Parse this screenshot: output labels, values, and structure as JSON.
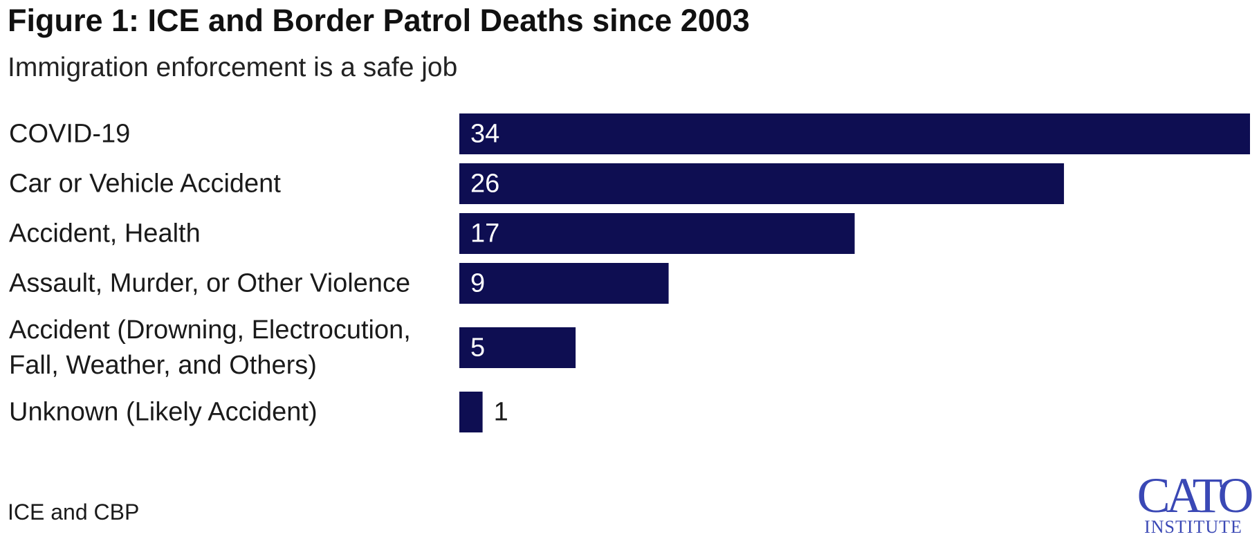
{
  "chart_data": {
    "type": "bar",
    "orientation": "horizontal",
    "title": "Figure 1: ICE and Border Patrol Deaths since 2003",
    "subtitle": "Immigration enforcement is a safe job",
    "categories": [
      [
        "COVID-19"
      ],
      [
        "Car or Vehicle Accident"
      ],
      [
        "Accident, Health"
      ],
      [
        "Assault, Murder, or Other Violence"
      ],
      [
        "Accident (Drowning, Electrocution,",
        "Fall, Weather, and Others)"
      ],
      [
        "Unknown (Likely Accident)"
      ]
    ],
    "values": [
      34,
      26,
      17,
      9,
      5,
      1
    ],
    "xlim": [
      0,
      34
    ],
    "grid": false,
    "bar_color": "#0e0e52",
    "label_color_inside": "#ffffff",
    "label_color_outside": "#1a1a1a"
  },
  "footer": {
    "source": "ICE and CBP",
    "logo_top": "CATO",
    "logo_bottom": "INSTITUTE",
    "logo_color": "#3a48b5"
  }
}
